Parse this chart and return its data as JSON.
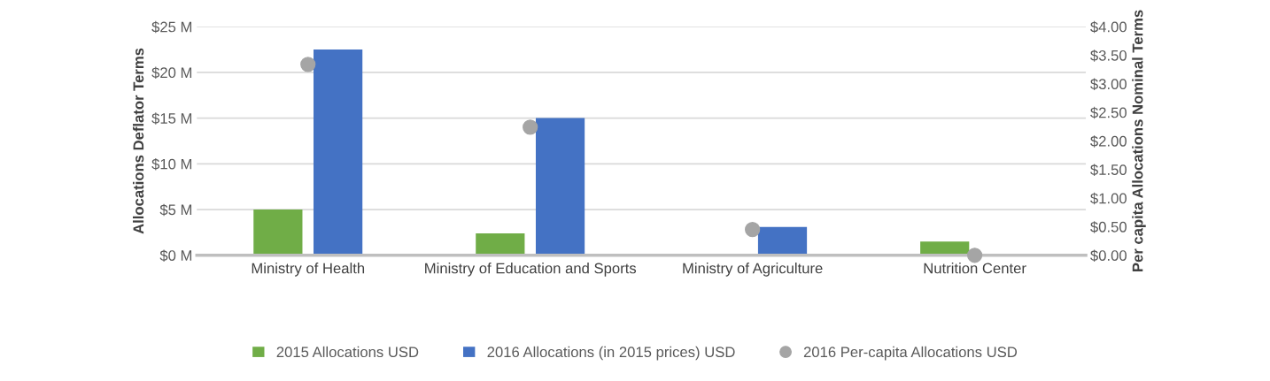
{
  "chart_data": {
    "type": "bar",
    "categories": [
      "Ministry of Health",
      "Ministry of Education and Sports",
      "Ministry of Agriculture",
      "Nutrition Center"
    ],
    "series": [
      {
        "name": "2015 Allocations USD",
        "color": "#70ad47",
        "values": [
          5.0,
          2.4,
          0,
          1.5
        ]
      },
      {
        "name": "2016 Allocations (in 2015 prices) USD",
        "color": "#4472c4",
        "values": [
          22.5,
          15.0,
          3.1,
          0
        ]
      },
      {
        "name": "2016 Per-capita Allocations USD",
        "type": "scatter",
        "axis": "y2",
        "color": "#a5a5a5",
        "values": [
          3.34,
          2.24,
          0.45,
          0
        ]
      }
    ],
    "ylabel": "Allocations Deflator Terms",
    "y2label": "Per capita Allocations Nominal Terms",
    "ylim": [
      0,
      25
    ],
    "yticks": [
      {
        "value": 0,
        "label": "$0 M"
      },
      {
        "value": 5,
        "label": "$5 M"
      },
      {
        "value": 10,
        "label": "$10 M"
      },
      {
        "value": 15,
        "label": "$15 M"
      },
      {
        "value": 20,
        "label": "$20 M"
      },
      {
        "value": 25,
        "label": "$25 M"
      }
    ],
    "y2lim": [
      0,
      4
    ],
    "y2ticks": [
      {
        "value": 0,
        "label": "$0.00"
      },
      {
        "value": 0.5,
        "label": "$0.50"
      },
      {
        "value": 1,
        "label": "$1.00"
      },
      {
        "value": 1.5,
        "label": "$1.50"
      },
      {
        "value": 2,
        "label": "$2.00"
      },
      {
        "value": 2.5,
        "label": "$2.50"
      },
      {
        "value": 3,
        "label": "$3.00"
      },
      {
        "value": 3.5,
        "label": "$3.50"
      },
      {
        "value": 4,
        "label": "$4.00"
      }
    ],
    "grid": "y",
    "legend": "bottom",
    "marker": "circle"
  }
}
